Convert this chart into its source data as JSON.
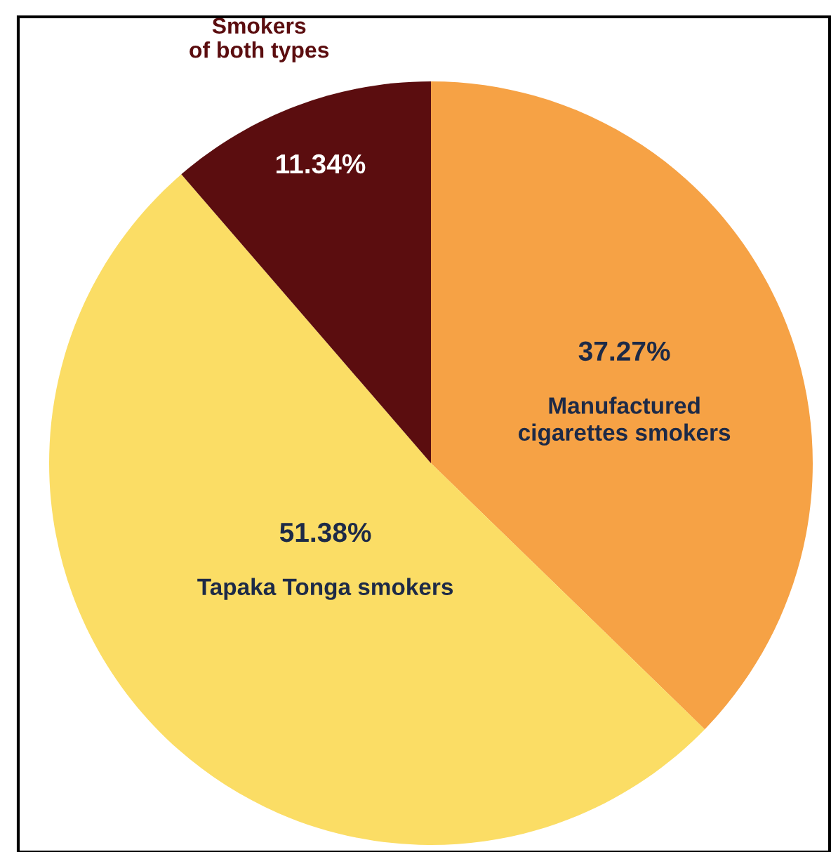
{
  "chart_data": {
    "type": "pie",
    "categories": [
      "Manufactured\ncigarettes smokers",
      "Tapaka Tonga smokers",
      "Smokers\nof both types"
    ],
    "values": [
      37.27,
      51.38,
      11.34
    ],
    "colors": [
      "#f6a245",
      "#fbdd65",
      "#5b0d0f"
    ],
    "value_labels": [
      "37.27%",
      "51.38%",
      "11.34%"
    ],
    "legend": false
  }
}
